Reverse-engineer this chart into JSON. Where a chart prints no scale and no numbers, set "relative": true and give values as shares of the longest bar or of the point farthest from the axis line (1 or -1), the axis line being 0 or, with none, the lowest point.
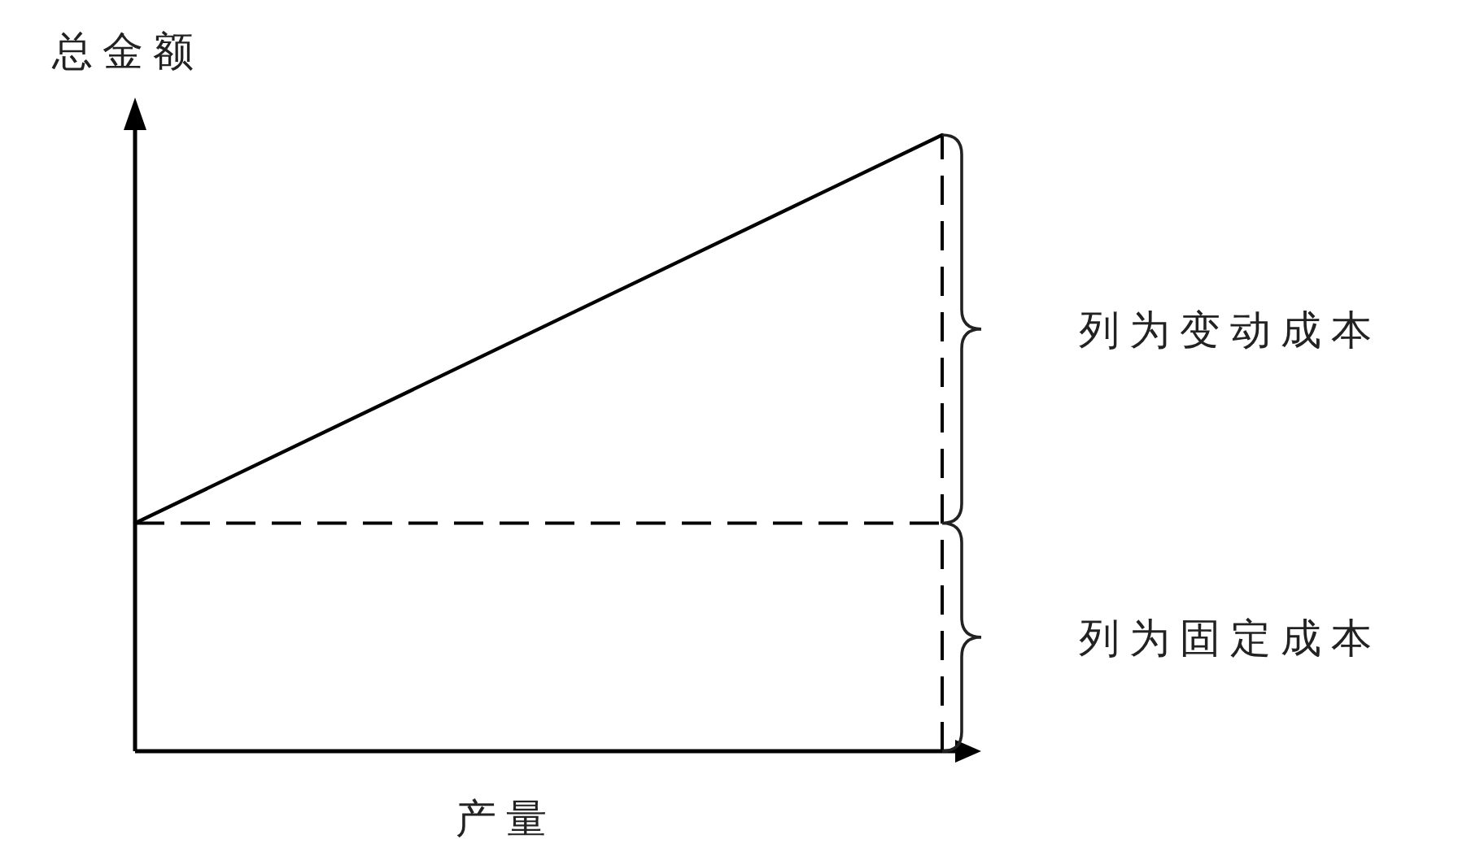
{
  "chart_data": {
    "type": "line",
    "relative": true,
    "ylabel": "总金额",
    "xlabel": "产量",
    "categories": [
      null,
      null
    ],
    "series": [
      {
        "color": "#000000",
        "values": [
          0.37,
          1
        ]
      }
    ],
    "ref_lines": [
      {
        "axis": "y",
        "value": 0.37,
        "line_style": "dashed",
        "color": "#000000"
      }
    ],
    "annotations": [
      "列为变动成本",
      "列为固定成本"
    ]
  }
}
